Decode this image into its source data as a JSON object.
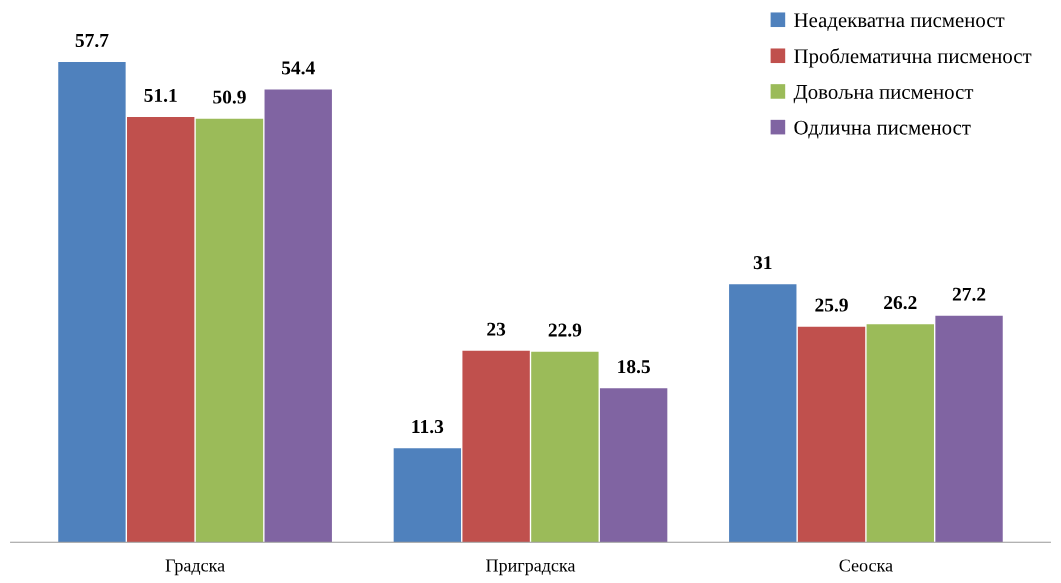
{
  "chart_data": {
    "type": "bar",
    "categories": [
      "Градска",
      "Приградска",
      "Сеоска"
    ],
    "series": [
      {
        "name": "Неадекватна писменост",
        "color": "#4f81bd",
        "values": [
          57.7,
          11.3,
          31
        ]
      },
      {
        "name": "Проблематична писменост",
        "color": "#c0504d",
        "values": [
          51.1,
          23,
          25.9
        ]
      },
      {
        "name": "Довољна писменост",
        "color": "#9bbb59",
        "values": [
          50.9,
          22.9,
          26.2
        ]
      },
      {
        "name": "Одлична писменост",
        "color": "#8064a2",
        "values": [
          54.4,
          18.5,
          27.2
        ]
      }
    ],
    "data_labels": true,
    "legend": "top right",
    "grid": false
  }
}
